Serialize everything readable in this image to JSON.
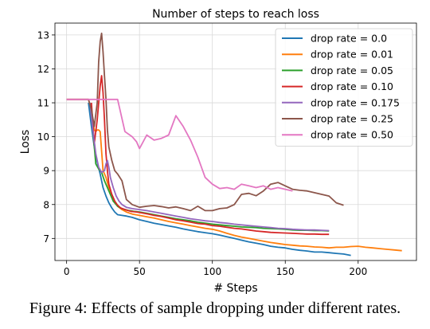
{
  "chart_data": {
    "type": "line",
    "title": "Number of steps to reach loss",
    "xlabel": "# Steps",
    "ylabel": "Loss",
    "xlim": [
      -8,
      240
    ],
    "ylim": [
      6.35,
      13.35
    ],
    "xticks": [
      0,
      50,
      100,
      150,
      200
    ],
    "yticks": [
      7,
      8,
      9,
      10,
      11,
      12,
      13
    ],
    "grid": true,
    "legend_position": "top-right",
    "series": [
      {
        "name": "drop rate = 0.0",
        "color": "#1f77b4",
        "x": [
          15,
          17,
          19,
          21,
          23,
          25,
          27,
          29,
          31,
          33,
          35,
          38,
          41,
          45,
          50,
          55,
          60,
          65,
          70,
          75,
          80,
          85,
          90,
          95,
          100,
          105,
          110,
          115,
          120,
          125,
          130,
          135,
          140,
          145,
          150,
          155,
          160,
          165,
          170,
          175,
          180,
          185,
          190,
          195
        ],
        "y": [
          11.0,
          10.3,
          9.7,
          9.25,
          8.9,
          8.5,
          8.25,
          8.05,
          7.9,
          7.78,
          7.7,
          7.68,
          7.66,
          7.62,
          7.55,
          7.5,
          7.45,
          7.41,
          7.37,
          7.33,
          7.28,
          7.24,
          7.2,
          7.17,
          7.14,
          7.1,
          7.05,
          7.0,
          6.95,
          6.9,
          6.86,
          6.82,
          6.77,
          6.74,
          6.72,
          6.68,
          6.65,
          6.63,
          6.6,
          6.6,
          6.58,
          6.56,
          6.54,
          6.5
        ]
      },
      {
        "name": "drop rate = 0.01",
        "color": "#ff7f0e",
        "x": [
          0,
          5,
          10,
          15,
          17,
          19,
          20,
          21,
          22,
          23,
          25,
          27,
          29,
          31,
          33,
          35,
          38,
          41,
          45,
          50,
          55,
          60,
          65,
          70,
          75,
          80,
          85,
          90,
          95,
          100,
          105,
          110,
          115,
          120,
          125,
          130,
          135,
          140,
          145,
          150,
          155,
          160,
          165,
          170,
          175,
          180,
          185,
          190,
          195,
          200,
          205,
          210,
          215,
          220,
          225,
          230
        ],
        "y": [
          11.1,
          11.1,
          11.1,
          11.1,
          10.8,
          10.2,
          10.15,
          10.2,
          10.2,
          10.15,
          9.0,
          8.8,
          8.5,
          8.3,
          8.1,
          7.95,
          7.85,
          7.78,
          7.72,
          7.68,
          7.64,
          7.6,
          7.55,
          7.5,
          7.46,
          7.42,
          7.38,
          7.34,
          7.3,
          7.27,
          7.22,
          7.15,
          7.09,
          7.04,
          7.0,
          6.96,
          6.92,
          6.88,
          6.85,
          6.82,
          6.8,
          6.78,
          6.77,
          6.75,
          6.74,
          6.72,
          6.74,
          6.74,
          6.76,
          6.77,
          6.74,
          6.72,
          6.7,
          6.68,
          6.66,
          6.64
        ]
      },
      {
        "name": "drop rate = 0.05",
        "color": "#2ca02c",
        "x": [
          16,
          18,
          20,
          22,
          24,
          26,
          28,
          30,
          32,
          35,
          38,
          42,
          46,
          50,
          55,
          60,
          65,
          70,
          75,
          80,
          85,
          90,
          95,
          100,
          105,
          110,
          115,
          120,
          125,
          130,
          135,
          140,
          145,
          150,
          155,
          160,
          165,
          170,
          175,
          180
        ],
        "y": [
          11.0,
          10.2,
          9.2,
          9.05,
          8.95,
          8.7,
          8.5,
          8.3,
          8.1,
          7.95,
          7.88,
          7.83,
          7.8,
          7.78,
          7.74,
          7.7,
          7.66,
          7.62,
          7.58,
          7.55,
          7.52,
          7.48,
          7.45,
          7.42,
          7.4,
          7.38,
          7.36,
          7.34,
          7.33,
          7.32,
          7.3,
          7.29,
          7.28,
          7.27,
          7.25,
          7.24,
          7.24,
          7.23,
          7.23,
          7.22
        ]
      },
      {
        "name": "drop rate = 0.10",
        "color": "#d62728",
        "x": [
          17,
          19,
          21,
          23,
          24,
          25,
          26,
          27,
          28,
          29,
          31,
          33,
          35,
          37,
          40,
          44,
          48,
          52,
          56,
          60,
          65,
          70,
          75,
          80,
          85,
          90,
          95,
          100,
          105,
          110,
          115,
          120,
          125,
          130,
          135,
          140,
          145,
          150,
          155,
          160,
          165,
          170,
          175,
          180
        ],
        "y": [
          11.0,
          9.8,
          10.5,
          11.5,
          11.8,
          11.3,
          10.5,
          9.5,
          9.0,
          8.6,
          8.3,
          8.1,
          7.98,
          7.9,
          7.85,
          7.8,
          7.78,
          7.75,
          7.72,
          7.68,
          7.65,
          7.6,
          7.55,
          7.52,
          7.48,
          7.44,
          7.42,
          7.38,
          7.36,
          7.33,
          7.3,
          7.28,
          7.25,
          7.22,
          7.2,
          7.18,
          7.17,
          7.16,
          7.15,
          7.14,
          7.13,
          7.13,
          7.12,
          7.12
        ]
      },
      {
        "name": "drop rate = 0.175",
        "color": "#9467bd",
        "x": [
          16,
          18,
          20,
          22,
          24,
          26,
          27,
          28,
          29,
          30,
          32,
          34,
          36,
          38,
          41,
          45,
          50,
          55,
          60,
          65,
          70,
          75,
          80,
          85,
          90,
          95,
          100,
          105,
          110,
          115,
          120,
          125,
          130,
          135,
          140,
          145,
          150,
          155,
          160,
          165,
          170,
          175,
          180
        ],
        "y": [
          11.0,
          10.2,
          9.5,
          9.1,
          8.95,
          9.0,
          9.2,
          9.3,
          9.1,
          8.8,
          8.5,
          8.25,
          8.1,
          8.0,
          7.92,
          7.88,
          7.85,
          7.82,
          7.78,
          7.74,
          7.7,
          7.66,
          7.62,
          7.58,
          7.55,
          7.52,
          7.5,
          7.47,
          7.45,
          7.42,
          7.4,
          7.38,
          7.36,
          7.34,
          7.32,
          7.3,
          7.29,
          7.27,
          7.26,
          7.25,
          7.25,
          7.24,
          7.23
        ]
      },
      {
        "name": "drop rate = 0.25",
        "color": "#8c564b",
        "x": [
          0,
          5,
          10,
          15,
          17,
          19,
          21,
          22,
          23,
          24,
          25,
          26,
          27,
          28,
          29,
          31,
          33,
          35,
          38,
          41,
          45,
          50,
          55,
          60,
          65,
          70,
          75,
          80,
          85,
          90,
          95,
          100,
          105,
          110,
          115,
          120,
          125,
          130,
          135,
          140,
          145,
          150,
          155,
          160,
          165,
          170,
          175,
          180,
          185,
          190
        ],
        "y": [
          11.1,
          11.1,
          11.1,
          11.1,
          10.8,
          10.3,
          11.0,
          12.2,
          12.8,
          13.05,
          12.5,
          11.8,
          11.1,
          10.2,
          9.7,
          9.3,
          9.0,
          8.9,
          8.7,
          8.15,
          8.0,
          7.92,
          7.95,
          7.97,
          7.94,
          7.9,
          7.93,
          7.88,
          7.82,
          7.95,
          7.82,
          7.82,
          7.88,
          7.9,
          8.0,
          8.3,
          8.33,
          8.26,
          8.4,
          8.6,
          8.65,
          8.55,
          8.45,
          8.42,
          8.4,
          8.35,
          8.3,
          8.25,
          8.05,
          7.98
        ]
      },
      {
        "name": "drop rate = 0.50",
        "color": "#e377c2",
        "x": [
          0,
          10,
          20,
          30,
          35,
          40,
          45,
          48,
          50,
          55,
          60,
          65,
          70,
          75,
          80,
          85,
          90,
          95,
          100,
          105,
          110,
          115,
          120,
          125,
          130,
          135,
          140,
          145,
          150,
          155
        ],
        "y": [
          11.1,
          11.1,
          11.1,
          11.1,
          11.1,
          10.15,
          10.0,
          9.85,
          9.65,
          10.05,
          9.9,
          9.95,
          10.05,
          10.62,
          10.3,
          9.9,
          9.4,
          8.8,
          8.6,
          8.47,
          8.5,
          8.45,
          8.6,
          8.55,
          8.5,
          8.55,
          8.45,
          8.5,
          8.45,
          8.4
        ]
      }
    ]
  },
  "caption": "Figure 4: Effects of sample dropping under different rates."
}
